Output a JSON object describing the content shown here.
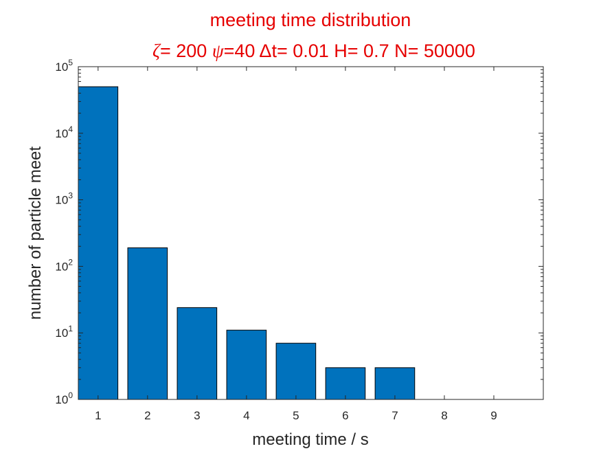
{
  "chart_data": {
    "type": "bar",
    "title_line1": "meeting time distribution",
    "title_line2": {
      "zeta_symbol": "ζ",
      "zeta_value": "= 200 ",
      "psi_symbol": "ψ",
      "psi_value": "=40 ",
      "dt_symbol": "Δ",
      "dt_value": "t= 0.01 ",
      "h_value": "H= 0.7 ",
      "n_value": "N= 50000"
    },
    "xlabel": "meeting time / s",
    "ylabel": "number of particle meet",
    "categories": [
      "1",
      "2",
      "3",
      "4",
      "5",
      "6",
      "7",
      "8",
      "9"
    ],
    "x": [
      1,
      2,
      3,
      4,
      5,
      6,
      7,
      8,
      9
    ],
    "values": [
      50000,
      190,
      24,
      11,
      7,
      3,
      3,
      1,
      1
    ],
    "xlim": [
      0.6,
      10.0
    ],
    "ylim": [
      1,
      100000
    ],
    "yscale": "log",
    "yticks": [
      {
        "base": "10",
        "exp": "0",
        "value": 1
      },
      {
        "base": "10",
        "exp": "1",
        "value": 10
      },
      {
        "base": "10",
        "exp": "2",
        "value": 100
      },
      {
        "base": "10",
        "exp": "3",
        "value": 1000
      },
      {
        "base": "10",
        "exp": "4",
        "value": 10000
      },
      {
        "base": "10",
        "exp": "5",
        "value": 100000
      }
    ],
    "grid": false,
    "bar_color": "#0072bd",
    "title_color": "#e60000"
  }
}
